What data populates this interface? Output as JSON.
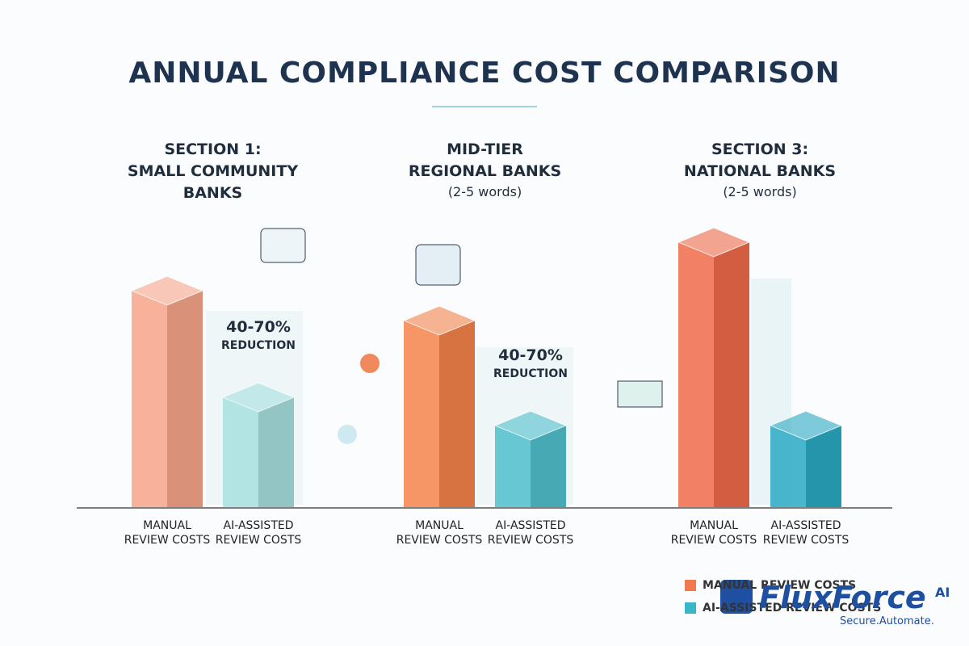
{
  "title": "ANNUAL COMPLIANCE COST COMPARISON",
  "legend": [
    {
      "name": "MANUAL REVIEW COSTS",
      "color": "#f07a4e"
    },
    {
      "name": "AI-ASSISTED REVIEW COSTS",
      "color": "#3bb6c8"
    }
  ],
  "watermark": {
    "brand": "FluxForce",
    "suffix": "AI",
    "tagline": "Secure.Automate."
  },
  "chart_data": [
    {
      "type": "bar",
      "title_lines": [
        "SECTION 1:",
        "SMALL COMMUNITY",
        "BANKS"
      ],
      "categories": [
        "MANUAL REVIEW COSTS",
        "AI-ASSISTED REVIEW COSTS"
      ],
      "values": [
        250,
        118
      ],
      "colors": [
        "#f7a58a",
        "#a8e0e0"
      ],
      "annotation": {
        "text": "40-70%",
        "subtext": "REDUCTION"
      }
    },
    {
      "type": "bar",
      "title_lines": [
        "MID-TIER",
        "REGIONAL BANKS"
      ],
      "subtitle": "(2-5 words)",
      "categories": [
        "MANUAL REVIEW COSTS",
        "AI-ASSISTED REVIEW COSTS"
      ],
      "values": [
        213,
        83
      ],
      "colors": [
        "#f4834a",
        "#4fc0cc"
      ],
      "annotation": {
        "text": "40-70%",
        "subtext": "REDUCTION"
      }
    },
    {
      "type": "bar",
      "title_lines": [
        "SECTION 3:",
        "NATIONAL BANKS"
      ],
      "subtitle": "(2-5 words)",
      "categories": [
        "MANUAL REVIEW COSTS",
        "AI-ASSISTED REVIEW COSTS"
      ],
      "values": [
        310,
        83
      ],
      "colors": [
        "#ef6a4a",
        "#2aa9c4"
      ]
    }
  ]
}
